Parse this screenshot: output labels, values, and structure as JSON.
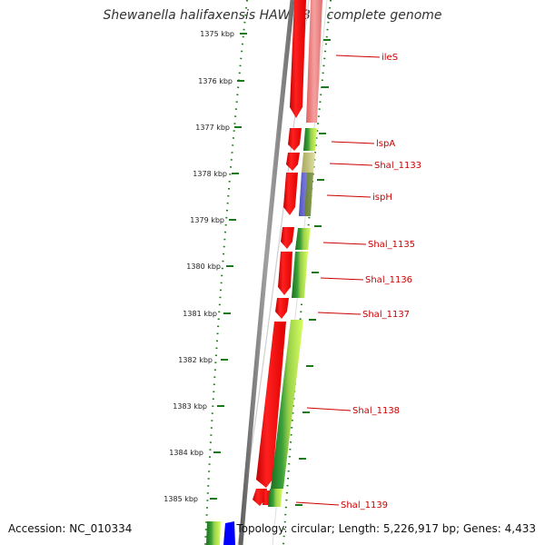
{
  "title": "Shewanella halifaxensis HAW-EB4, complete genome",
  "accession": "Accession: NC_010334",
  "topology": "Topology: circular; Length: 5,226,917 bp; Genes: 4,433",
  "ticks": [
    "1375 kbp",
    "1376 kbp",
    "1377 kbp",
    "1378 kbp",
    "1379 kbp",
    "1380 kbp",
    "1381 kbp",
    "1382 kbp",
    "1383 kbp",
    "1384 kbp",
    "1385 kbp"
  ],
  "genes": [
    "ileS",
    "lspA",
    "Shal_1133",
    "ispH",
    "Shal_1135",
    "Shal_1136",
    "Shal_1137",
    "Shal_1138",
    "Shal_1139"
  ],
  "colors": {
    "cds": "#ff0000",
    "cds_light": "#f08080",
    "backbone": "#808080",
    "tick": "#1a7a1a",
    "label": "#cc0000",
    "green_dark": "#2e8b2e",
    "green_light": "#adff2f",
    "olive": "#c8c880",
    "blue": "#6060d0"
  }
}
